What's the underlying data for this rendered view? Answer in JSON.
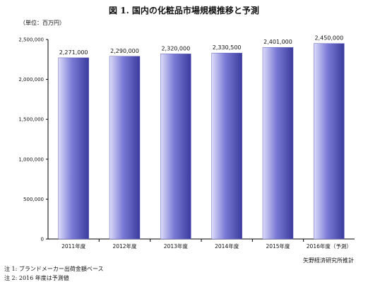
{
  "title": "図 1. 国内の化粧品市場規模推移と予測",
  "unit_label": "（単位：百万円）",
  "source": "矢野経済研究所推計",
  "notes": [
    "注 1: ブランドメーカー出荷金額ベース",
    "注 2: 2016 年度は予測値"
  ],
  "colors": {
    "bar_light": "#dcdcfa",
    "bar_mid": "#7a7ad6",
    "bar_dark": "#3b3b9e",
    "axis": "#000000"
  },
  "chart_data": {
    "type": "bar",
    "categories": [
      "2011年度",
      "2012年度",
      "2013年度",
      "2014年度",
      "2015年度",
      "2016年度（予測）"
    ],
    "values": [
      2271000,
      2290000,
      2320000,
      2330500,
      2401000,
      2450000
    ],
    "value_labels": [
      "2,271,000",
      "2,290,000",
      "2,320,000",
      "2,330,500",
      "2,401,000",
      "2,450,000"
    ],
    "ylim": [
      0,
      2500000
    ],
    "yticks": [
      0,
      500000,
      1000000,
      1500000,
      2000000,
      2500000
    ],
    "ytick_labels": [
      "0",
      "500,000",
      "1,000,000",
      "1,500,000",
      "2,000,000",
      "2,500,000"
    ],
    "grid": false
  }
}
